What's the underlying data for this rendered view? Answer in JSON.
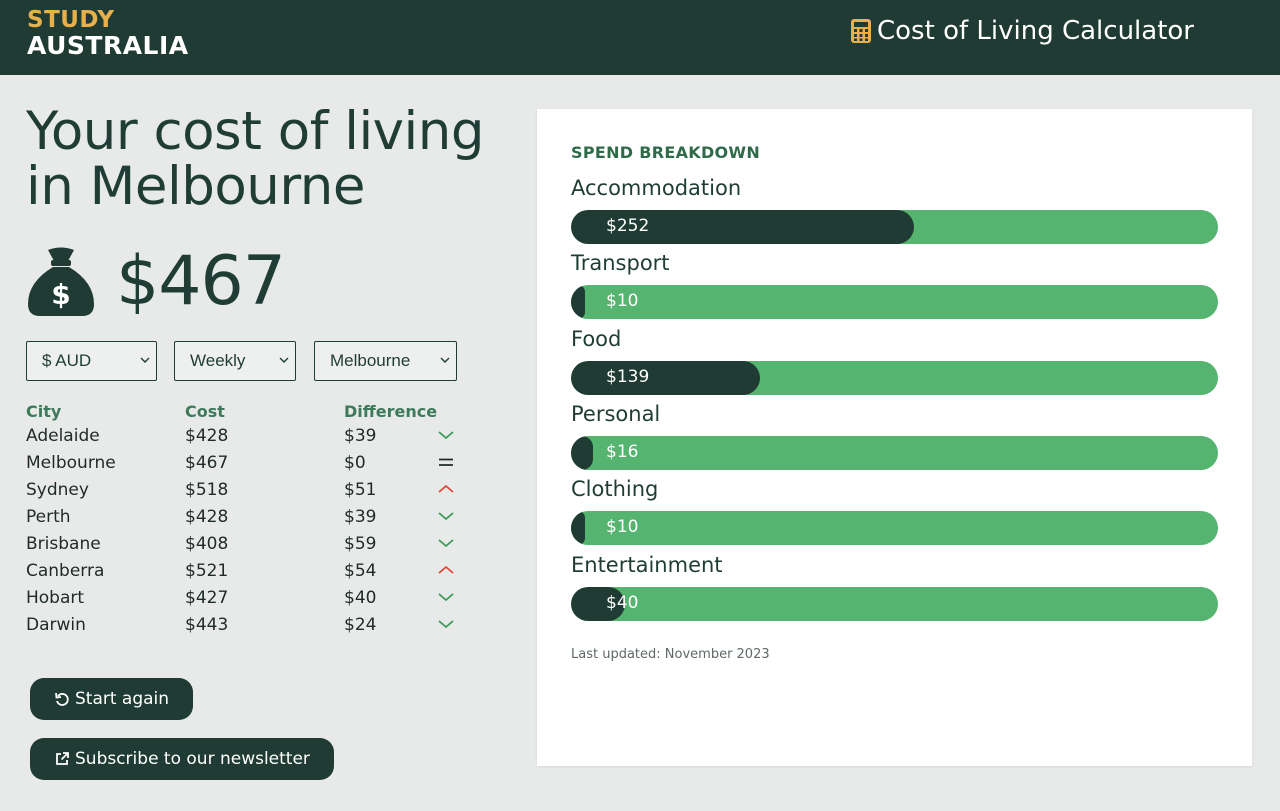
{
  "header": {
    "logo_line1": "STUDY",
    "logo_line2": "AUSTRALIA",
    "app_title": "Cost of Living Calculator",
    "app_icon": "calculator-icon",
    "brand_colors": {
      "dark_green": "#1f3b33",
      "gold": "#e7b04a",
      "bar_green": "#55b570"
    }
  },
  "summary": {
    "headline": "Your cost of living in Melbourne",
    "total_icon": "money-bag-icon",
    "total": "$467"
  },
  "filters": {
    "currency": "$ AUD",
    "period": "Weekly",
    "city": "Melbourne"
  },
  "table": {
    "headers": [
      "City",
      "Cost",
      "Difference"
    ],
    "rows": [
      {
        "city": "Adelaide",
        "cost": "$428",
        "difference": "$39",
        "trend": "down"
      },
      {
        "city": "Melbourne",
        "cost": "$467",
        "difference": "$0",
        "trend": "equal"
      },
      {
        "city": "Sydney",
        "cost": "$518",
        "difference": "$51",
        "trend": "up"
      },
      {
        "city": "Perth",
        "cost": "$428",
        "difference": "$39",
        "trend": "down"
      },
      {
        "city": "Brisbane",
        "cost": "$408",
        "difference": "$59",
        "trend": "down"
      },
      {
        "city": "Canberra",
        "cost": "$521",
        "difference": "$54",
        "trend": "up"
      },
      {
        "city": "Hobart",
        "cost": "$427",
        "difference": "$40",
        "trend": "down"
      },
      {
        "city": "Darwin",
        "cost": "$443",
        "difference": "$24",
        "trend": "down"
      }
    ]
  },
  "actions": {
    "start_again": "Start again",
    "subscribe": "Subscribe to our newsletter"
  },
  "breakdown": {
    "heading": "SPEND BREAKDOWN",
    "items": [
      {
        "label": "Accommodation",
        "amount": "$252",
        "value": 252
      },
      {
        "label": "Transport",
        "amount": "$10",
        "value": 10
      },
      {
        "label": "Food",
        "amount": "$139",
        "value": 139
      },
      {
        "label": "Personal",
        "amount": "$16",
        "value": 16
      },
      {
        "label": "Clothing",
        "amount": "$10",
        "value": 10
      },
      {
        "label": "Entertainment",
        "amount": "$40",
        "value": 40
      }
    ],
    "scale_max": 476,
    "updated": "Last updated: November 2023"
  }
}
